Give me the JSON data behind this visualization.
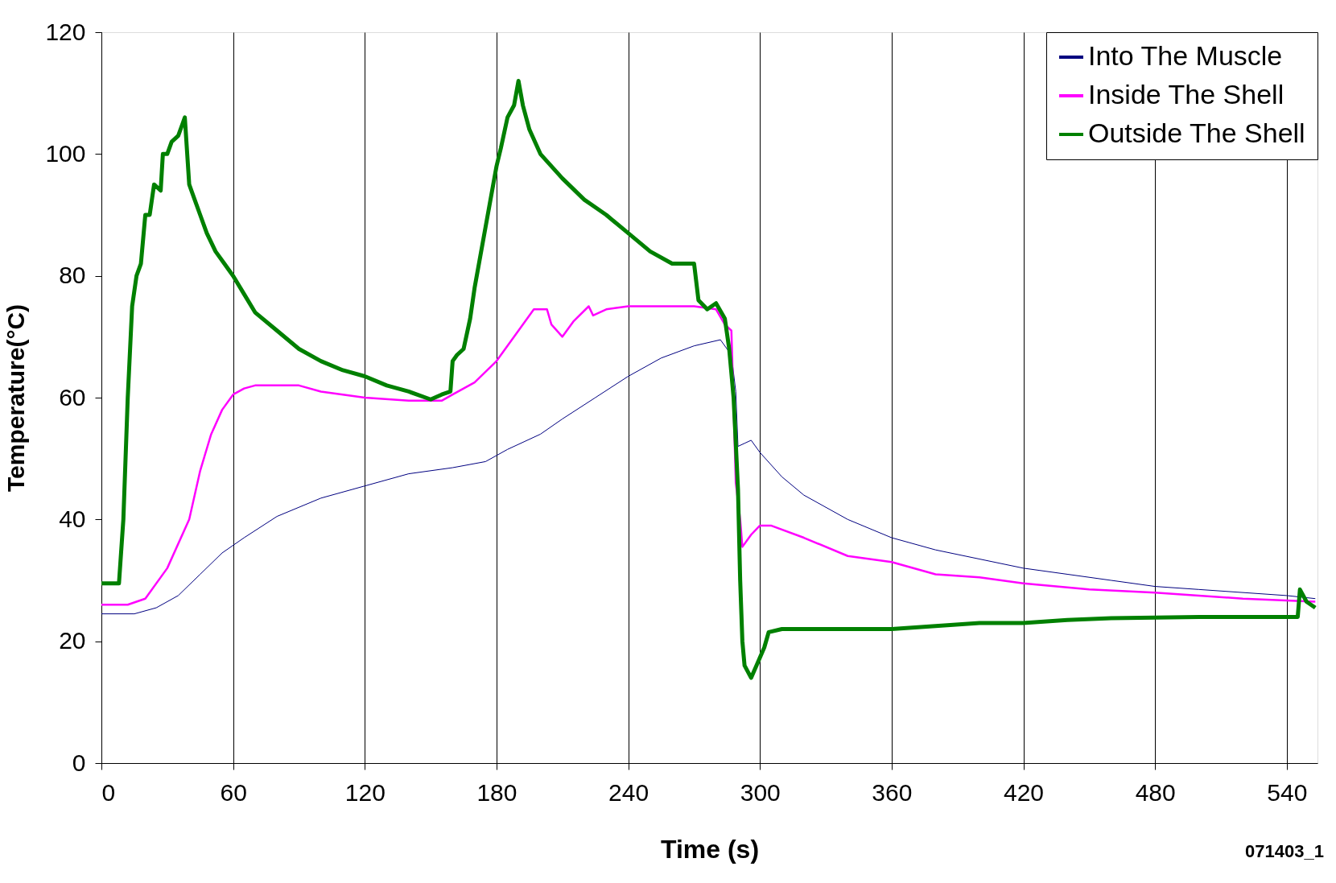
{
  "chart_data": {
    "type": "line",
    "xlabel": "Time (s)",
    "ylabel": "Temperature(°C)",
    "annotations": [
      "071403_1"
    ],
    "xlim": [
      0,
      554
    ],
    "xticks": [
      0,
      60,
      120,
      180,
      240,
      300,
      360,
      420,
      480,
      540
    ],
    "ylim": [
      0,
      120
    ],
    "yticks": [
      0,
      20,
      40,
      60,
      80,
      100,
      120
    ],
    "grid": "x",
    "legend": "top right",
    "line_style": "solid",
    "marker": "none",
    "series": [
      {
        "name": "Into The Muscle",
        "color": "#000080",
        "x": [
          0,
          15,
          25,
          35,
          45,
          55,
          65,
          80,
          100,
          120,
          140,
          160,
          175,
          185,
          200,
          210,
          225,
          240,
          255,
          270,
          282,
          287,
          289,
          290,
          293,
          296,
          300,
          310,
          320,
          340,
          360,
          380,
          400,
          420,
          440,
          460,
          480,
          500,
          540,
          553
        ],
        "values": [
          24.5,
          24.5,
          25.5,
          27.5,
          31,
          34.5,
          37,
          40.5,
          43.5,
          45.5,
          47.5,
          48.5,
          49.5,
          51.5,
          54,
          56.5,
          60,
          63.5,
          66.5,
          68.5,
          69.5,
          67,
          61,
          52,
          52.5,
          53,
          51,
          47,
          44,
          40,
          37,
          35,
          33.5,
          32,
          31,
          30,
          29,
          28.5,
          27.5,
          27
        ]
      },
      {
        "name": "Inside The Shell",
        "color": "#ff00ff",
        "x": [
          0,
          12,
          20,
          30,
          40,
          45,
          50,
          55,
          60,
          65,
          70,
          90,
          100,
          120,
          140,
          155,
          160,
          170,
          180,
          190,
          197,
          203,
          205,
          210,
          215,
          222,
          224,
          230,
          240,
          270,
          280,
          284,
          287,
          289,
          291,
          292,
          296,
          300,
          305,
          320,
          340,
          360,
          380,
          400,
          420,
          450,
          480,
          520,
          553
        ],
        "values": [
          26,
          26,
          27,
          32,
          40,
          48,
          54,
          58,
          60.5,
          61.5,
          62,
          62,
          61,
          60,
          59.5,
          59.5,
          60.5,
          62.5,
          66,
          71,
          74.5,
          74.5,
          72,
          70,
          72.5,
          75,
          73.5,
          74.5,
          75,
          75,
          74.5,
          72,
          71,
          46,
          40,
          35.5,
          37.5,
          39,
          39,
          37,
          34,
          33,
          31,
          30.5,
          29.5,
          28.5,
          28,
          27,
          26.5
        ]
      },
      {
        "name": "Outside The Shell",
        "color": "#008000",
        "x": [
          0,
          8,
          10,
          12,
          14,
          16,
          18,
          20,
          22,
          24,
          27,
          28,
          30,
          32,
          35,
          37,
          38,
          40,
          42,
          45,
          48,
          52,
          56,
          60,
          65,
          70,
          80,
          90,
          100,
          110,
          120,
          130,
          140,
          150,
          155,
          159,
          160,
          162,
          165,
          168,
          170,
          172,
          175,
          178,
          180,
          182,
          185,
          188,
          190,
          192,
          195,
          200,
          210,
          220,
          230,
          240,
          250,
          260,
          270,
          272,
          276,
          280,
          284,
          286,
          288,
          290,
          291,
          292,
          293,
          296,
          299,
          302,
          304,
          310,
          320,
          340,
          360,
          380,
          400,
          420,
          440,
          460,
          500,
          545,
          546,
          549,
          553
        ],
        "values": [
          29.5,
          29.5,
          40,
          60,
          75,
          80,
          82,
          90,
          90,
          95,
          94,
          100,
          100,
          102,
          103,
          105,
          106,
          95,
          93,
          90,
          87,
          84,
          82,
          80,
          77,
          74,
          71,
          68,
          66,
          64.5,
          63.5,
          62,
          61,
          59.7,
          60.5,
          61,
          66,
          67,
          68,
          73,
          78,
          82,
          88,
          94,
          98,
          101,
          106,
          108,
          112,
          108,
          104,
          100,
          96,
          92.5,
          90,
          87,
          84,
          82,
          82,
          76,
          74.5,
          75.5,
          73,
          68,
          60,
          45,
          30,
          20,
          16,
          14,
          16.5,
          19,
          21.5,
          22,
          22,
          22,
          22,
          22.5,
          23,
          23,
          23.5,
          23.8,
          24,
          24,
          28.5,
          26.5,
          25.5
        ]
      }
    ]
  }
}
